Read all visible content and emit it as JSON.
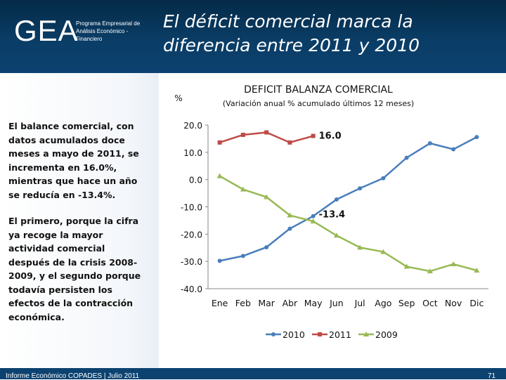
{
  "header": {
    "logo": "GEA",
    "logo_subtitle": "Programa Empresarial de Análisis Económico - Financiero",
    "title_line1": "El déficit comercial marca la",
    "title_line2": "diferencia entre 2011 y 2010"
  },
  "sidebar": {
    "paragraph1": "El balance comercial, con datos acumulados doce meses a mayo de 2011, se incrementa en 16.0%, mientras que hace un año se reducía en -13.4%.",
    "paragraph2": "El primero, porque la cifra ya recoge la mayor actividad comercial después de la crisis 2008-2009, y el segundo porque todavía persisten los efectos de la contracción económica."
  },
  "footer": {
    "left": "Informe Económico COPADES  |  Julio 2011",
    "page_number": "71"
  },
  "colors": {
    "header_bg": "#0c4270",
    "series_2010": "#4a7ebb",
    "series_2011": "#be4b48",
    "series_2009": "#98b954"
  },
  "chart_data": {
    "type": "line",
    "title": "DEFICIT BALANZA COMERCIAL",
    "subtitle": "(Variación anual % acumulado últimos 12 meses)",
    "ylabel": "%",
    "xlabel": "",
    "ylim": [
      -40,
      20
    ],
    "yticks": [
      20,
      10,
      0,
      -10,
      -20,
      -30,
      -40
    ],
    "ytick_labels": [
      "20.0",
      "10.0",
      "0.0",
      "-10.0",
      "-20.0",
      "-30.0",
      "-40.0"
    ],
    "categories": [
      "Ene",
      "Feb",
      "Mar",
      "Abr",
      "May",
      "Jun",
      "Jul",
      "Ago",
      "Sep",
      "Oct",
      "Nov",
      "Dic"
    ],
    "grid": false,
    "legend_position": "bottom",
    "series": [
      {
        "name": "2010",
        "color": "#4a7ebb",
        "marker": "circle",
        "values": [
          -29.8,
          -28.0,
          -24.8,
          -18.0,
          -13.4,
          -7.3,
          -3.2,
          0.5,
          8.0,
          13.3,
          11.1,
          15.6
        ]
      },
      {
        "name": "2011",
        "color": "#be4b48",
        "marker": "square",
        "values": [
          13.6,
          16.4,
          17.3,
          13.6,
          16.0,
          null,
          null,
          null,
          null,
          null,
          null,
          null
        ]
      },
      {
        "name": "2009",
        "color": "#98b954",
        "marker": "triangle",
        "values": [
          1.3,
          -3.6,
          -6.4,
          -13.1,
          -15.3,
          -20.5,
          -24.9,
          -26.5,
          -31.9,
          -33.6,
          -31.0,
          -33.3
        ]
      }
    ],
    "annotations": [
      {
        "text": "16.0",
        "series": "2011",
        "index": 4
      },
      {
        "text": "-13.4",
        "series": "2010",
        "index": 4
      }
    ]
  }
}
